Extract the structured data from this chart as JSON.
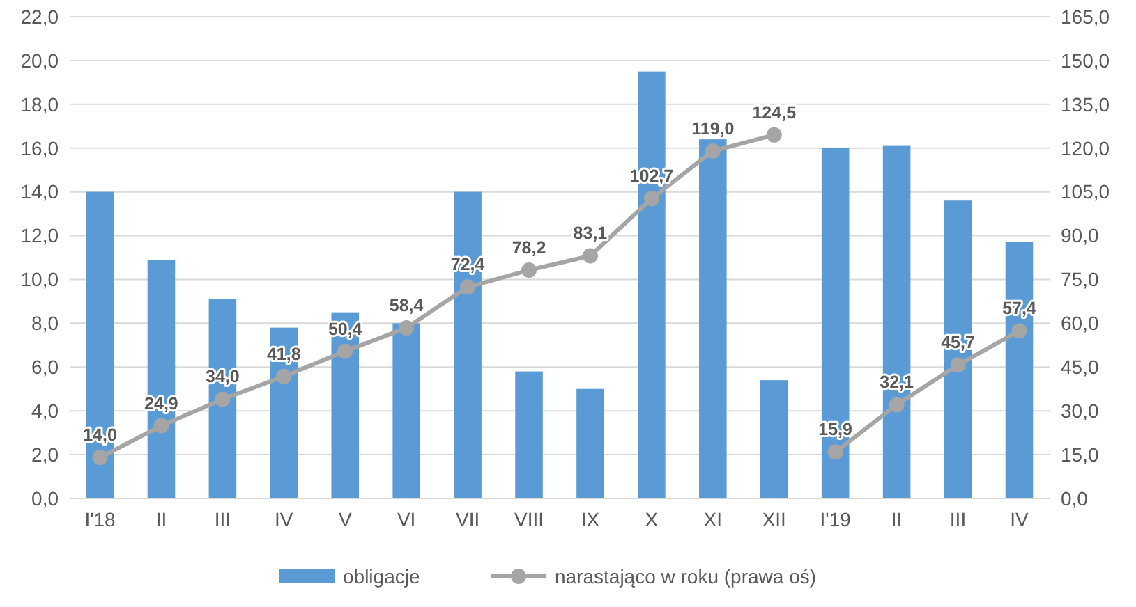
{
  "chart_data": {
    "type": "bar",
    "categories": [
      "I'18",
      "II",
      "III",
      "IV",
      "V",
      "VI",
      "VII",
      "VIII",
      "IX",
      "X",
      "XI",
      "XII",
      "I'19",
      "II",
      "III",
      "IV"
    ],
    "series": [
      {
        "name": "obligacje",
        "color": "#5b9bd5",
        "values": [
          14.0,
          10.9,
          9.1,
          7.8,
          8.5,
          8.0,
          14.0,
          5.8,
          5.0,
          19.5,
          16.4,
          5.4,
          16.0,
          16.1,
          13.6,
          11.7
        ]
      },
      {
        "name": "narastająco w roku (prawa oś)",
        "type": "line",
        "axis": "y2",
        "color": "#a5a5a5",
        "marker": "circle",
        "values": [
          14.0,
          24.9,
          34.0,
          41.8,
          50.4,
          58.4,
          72.4,
          78.2,
          83.1,
          102.7,
          119.0,
          124.5,
          null,
          null,
          null,
          null
        ],
        "value_labels": [
          "14,0",
          "24,9",
          "34,0",
          "41,8",
          "50,4",
          "58,4",
          "72,4",
          "78,2",
          "83,1",
          "102,7",
          "119,0",
          "124,5",
          null,
          null,
          null,
          null
        ]
      },
      {
        "type": "line",
        "axis": "y2",
        "color": "#a5a5a5",
        "marker": "circle",
        "values": [
          null,
          null,
          null,
          null,
          null,
          null,
          null,
          null,
          null,
          null,
          null,
          null,
          15.9,
          32.1,
          45.7,
          57.4
        ],
        "value_labels": [
          null,
          null,
          null,
          null,
          null,
          null,
          null,
          null,
          null,
          null,
          null,
          null,
          "15,9",
          "32,1",
          "45,7",
          "57,4"
        ]
      }
    ],
    "ylim": [
      0,
      22
    ],
    "yticks": [
      {
        "value": 0,
        "label": "0,0"
      },
      {
        "value": 2,
        "label": "2,0"
      },
      {
        "value": 4,
        "label": "4,0"
      },
      {
        "value": 6,
        "label": "6,0"
      },
      {
        "value": 8,
        "label": "8,0"
      },
      {
        "value": 10,
        "label": "10,0"
      },
      {
        "value": 12,
        "label": "12,0"
      },
      {
        "value": 14,
        "label": "14,0"
      },
      {
        "value": 16,
        "label": "16,0"
      },
      {
        "value": 18,
        "label": "18,0"
      },
      {
        "value": 20,
        "label": "20,0"
      },
      {
        "value": 22,
        "label": "22,0"
      }
    ],
    "y2lim": [
      0,
      165
    ],
    "y2ticks": [
      {
        "value": 0,
        "label": "0,0"
      },
      {
        "value": 15,
        "label": "15,0"
      },
      {
        "value": 30,
        "label": "30,0"
      },
      {
        "value": 45,
        "label": "45,0"
      },
      {
        "value": 60,
        "label": "60,0"
      },
      {
        "value": 75,
        "label": "75,0"
      },
      {
        "value": 90,
        "label": "90,0"
      },
      {
        "value": 105,
        "label": "105,0"
      },
      {
        "value": 120,
        "label": "120,0"
      },
      {
        "value": 135,
        "label": "135,0"
      },
      {
        "value": 150,
        "label": "150,0"
      },
      {
        "value": 165,
        "label": "165,0"
      }
    ],
    "grid": "y",
    "legend": "bottom"
  }
}
